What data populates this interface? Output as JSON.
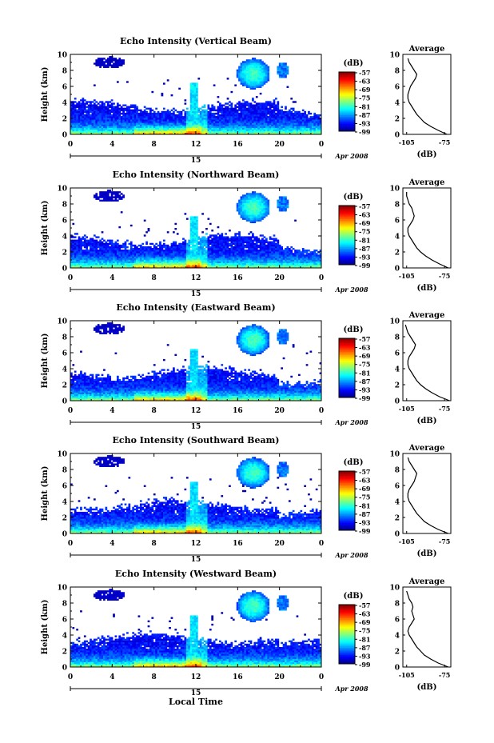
{
  "chart_data": [
    {
      "type": "heatmap",
      "title": "Echo Intensity (Vertical Beam)",
      "ylabel": "Height (km)",
      "ylim": [
        0,
        10
      ],
      "yticks": [
        "0",
        "2",
        "4",
        "6",
        "8",
        "10"
      ],
      "xticks": [
        "0",
        "4",
        "8",
        "12",
        "16",
        "20",
        "0"
      ],
      "xlim": [
        0,
        24
      ],
      "date_day": "15",
      "date_label": "Apr 2008",
      "colorbar": {
        "label": "(dB)",
        "ticks": [
          "-57",
          "-63",
          "-69",
          "-75",
          "-81",
          "-87",
          "-93",
          "-99"
        ],
        "range": [
          -99,
          -57
        ]
      },
      "profile": {
        "title": "Average",
        "xlabel": "(dB)",
        "xticks": [
          "-105",
          "-75"
        ],
        "xlim": [
          -108,
          -70
        ],
        "yticks": [
          "0",
          "2",
          "4",
          "6",
          "8",
          "10"
        ],
        "height": [
          0,
          0.5,
          1,
          1.5,
          2,
          2.5,
          3,
          3.5,
          4,
          4.5,
          5,
          5.5,
          6,
          6.5,
          7,
          7.5,
          8,
          8.5,
          9,
          9.5
        ],
        "db": [
          -73,
          -80,
          -86,
          -91,
          -94,
          -97,
          -99,
          -101,
          -103,
          -104,
          -104,
          -103,
          -102,
          -100,
          -98,
          -97,
          -99,
          -101,
          -103,
          -104
        ]
      }
    },
    {
      "type": "heatmap",
      "title": "Echo Intensity (Northward Beam)",
      "ylabel": "Height (km)",
      "ylim": [
        0,
        10
      ],
      "yticks": [
        "0",
        "2",
        "4",
        "6",
        "8",
        "10"
      ],
      "xticks": [
        "0",
        "4",
        "8",
        "12",
        "16",
        "20",
        "0"
      ],
      "xlim": [
        0,
        24
      ],
      "date_day": "15",
      "date_label": "Apr 2008",
      "colorbar": {
        "label": "(dB)",
        "ticks": [
          "-57",
          "-63",
          "-69",
          "-75",
          "-81",
          "-87",
          "-93",
          "-99"
        ],
        "range": [
          -99,
          -57
        ]
      },
      "profile": {
        "title": "Average",
        "xlabel": "(dB)",
        "xticks": [
          "-105",
          "-75"
        ],
        "xlim": [
          -108,
          -70
        ],
        "yticks": [
          "0",
          "2",
          "4",
          "6",
          "8",
          "10"
        ],
        "height": [
          0,
          0.5,
          1,
          1.5,
          2,
          2.5,
          3,
          3.5,
          4,
          4.5,
          5,
          5.5,
          6,
          6.5,
          7,
          7.5,
          8,
          8.5,
          9,
          9.5
        ],
        "db": [
          -72,
          -79,
          -85,
          -90,
          -94,
          -97,
          -99,
          -101,
          -103,
          -104,
          -104,
          -102,
          -100,
          -99,
          -100,
          -101,
          -103,
          -104,
          -105,
          -105
        ]
      }
    },
    {
      "type": "heatmap",
      "title": "Echo Intensity (Eastward Beam)",
      "ylabel": "Height (km)",
      "ylim": [
        0,
        10
      ],
      "yticks": [
        "0",
        "2",
        "4",
        "6",
        "8",
        "10"
      ],
      "xticks": [
        "0",
        "4",
        "8",
        "12",
        "16",
        "20",
        "0"
      ],
      "xlim": [
        0,
        24
      ],
      "date_day": "15",
      "date_label": "Apr 2008",
      "colorbar": {
        "label": "(dB)",
        "ticks": [
          "-57",
          "-63",
          "-69",
          "-75",
          "-81",
          "-87",
          "-93",
          "-99"
        ],
        "range": [
          -99,
          -57
        ]
      },
      "profile": {
        "title": "Average",
        "xlabel": "(dB)",
        "xticks": [
          "-105",
          "-75"
        ],
        "xlim": [
          -108,
          -70
        ],
        "yticks": [
          "0",
          "2",
          "4",
          "6",
          "8",
          "10"
        ],
        "height": [
          0,
          0.5,
          1,
          1.5,
          2,
          2.5,
          3,
          3.5,
          4,
          4.5,
          5,
          5.5,
          6,
          6.5,
          7,
          7.5,
          8,
          8.5,
          9,
          9.5
        ],
        "db": [
          -71,
          -79,
          -85,
          -90,
          -94,
          -97,
          -99,
          -101,
          -103,
          -104,
          -104,
          -103,
          -101,
          -99,
          -98,
          -100,
          -102,
          -104,
          -105,
          -106
        ]
      }
    },
    {
      "type": "heatmap",
      "title": "Echo Intensity (Southward Beam)",
      "ylabel": "Height (km)",
      "ylim": [
        0,
        10
      ],
      "yticks": [
        "0",
        "2",
        "4",
        "6",
        "8",
        "10"
      ],
      "xticks": [
        "0",
        "4",
        "8",
        "12",
        "16",
        "20",
        "0"
      ],
      "xlim": [
        0,
        24
      ],
      "date_day": "15",
      "date_label": "Apr 2008",
      "colorbar": {
        "label": "(dB)",
        "ticks": [
          "-57",
          "-63",
          "-69",
          "-75",
          "-81",
          "-87",
          "-93",
          "-99"
        ],
        "range": [
          -99,
          -57
        ]
      },
      "profile": {
        "title": "Average",
        "xlabel": "(dB)",
        "xticks": [
          "-105",
          "-75"
        ],
        "xlim": [
          -108,
          -70
        ],
        "yticks": [
          "0",
          "2",
          "4",
          "6",
          "8",
          "10"
        ],
        "height": [
          0,
          0.5,
          1,
          1.5,
          2,
          2.5,
          3,
          3.5,
          4,
          4.5,
          5,
          5.5,
          6,
          6.5,
          7,
          7.5,
          8,
          8.5,
          9,
          9.5
        ],
        "db": [
          -72,
          -80,
          -86,
          -91,
          -94,
          -97,
          -99,
          -101,
          -103,
          -104,
          -104,
          -103,
          -101,
          -99,
          -98,
          -97,
          -99,
          -101,
          -103,
          -104
        ]
      }
    },
    {
      "type": "heatmap",
      "title": "Echo Intensity (Westward Beam)",
      "ylabel": "Height (km)",
      "ylim": [
        0,
        10
      ],
      "yticks": [
        "0",
        "2",
        "4",
        "6",
        "8",
        "10"
      ],
      "xticks": [
        "0",
        "4",
        "8",
        "12",
        "16",
        "20",
        "0"
      ],
      "xlim": [
        0,
        24
      ],
      "date_day": "15",
      "date_label": "Apr 2008",
      "xlabel": "Local Time",
      "colorbar": {
        "label": "(dB)",
        "ticks": [
          "-57",
          "-63",
          "-69",
          "-75",
          "-81",
          "-87",
          "-93",
          "-99"
        ],
        "range": [
          -99,
          -57
        ]
      },
      "profile": {
        "title": "Average",
        "xlabel": "(dB)",
        "xticks": [
          "-105",
          "-75"
        ],
        "xlim": [
          -108,
          -70
        ],
        "yticks": [
          "0",
          "2",
          "4",
          "6",
          "8",
          "10"
        ],
        "height": [
          0,
          0.5,
          1,
          1.5,
          2,
          2.5,
          3,
          3.5,
          4,
          4.5,
          5,
          5.5,
          6,
          6.5,
          7,
          7.5,
          8,
          8.5,
          9,
          9.5
        ],
        "db": [
          -72,
          -80,
          -86,
          -91,
          -94,
          -97,
          -99,
          -101,
          -103,
          -104,
          -103,
          -101,
          -99,
          -100,
          -101,
          -100,
          -101,
          -103,
          -104,
          -105
        ]
      }
    }
  ]
}
